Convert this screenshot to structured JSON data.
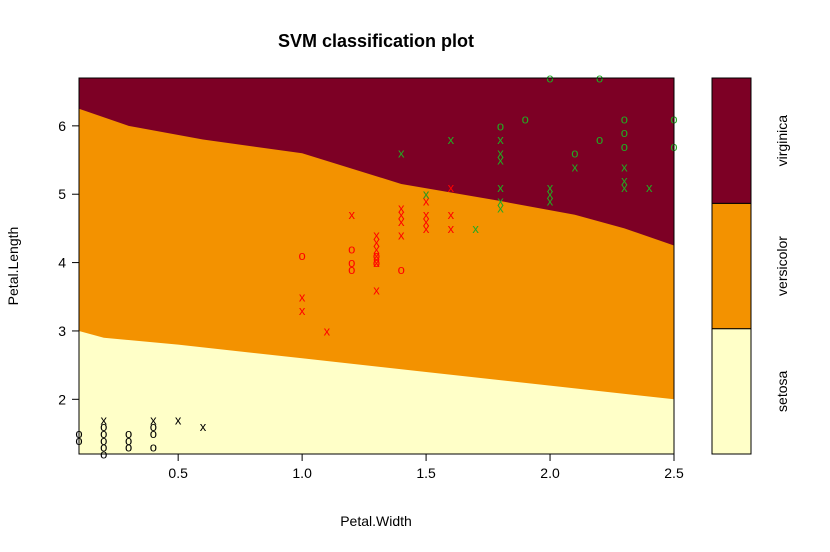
{
  "chart_data": {
    "type": "scatter",
    "title": "SVM classification plot",
    "xlabel": "Petal.Width",
    "ylabel": "Petal.Length",
    "xlim": [
      0.1,
      2.5
    ],
    "ylim": [
      1.2,
      6.7
    ],
    "x_ticks": [
      0.5,
      1.0,
      1.5,
      2.0,
      2.5
    ],
    "x_tick_labels": [
      "0.5",
      "1.0",
      "1.5",
      "2.0",
      "2.5"
    ],
    "y_ticks": [
      2,
      3,
      4,
      5,
      6
    ],
    "y_tick_labels": [
      "2",
      "3",
      "4",
      "5",
      "6"
    ],
    "grid": false,
    "legend_position": "right color key",
    "regions": [
      {
        "name": "setosa",
        "color": "#FFFFC8",
        "boundary_upper": [
          [
            0.1,
            3.0
          ],
          [
            0.2,
            2.9
          ],
          [
            0.5,
            2.8
          ],
          [
            1.0,
            2.6
          ],
          [
            1.5,
            2.4
          ],
          [
            2.0,
            2.2
          ],
          [
            2.5,
            2.0
          ]
        ]
      },
      {
        "name": "versicolor",
        "color": "#F39200",
        "boundary_upper": [
          [
            0.1,
            6.25
          ],
          [
            0.3,
            6.0
          ],
          [
            0.6,
            5.8
          ],
          [
            1.0,
            5.6
          ],
          [
            1.4,
            5.15
          ],
          [
            1.8,
            4.9
          ],
          [
            2.1,
            4.7
          ],
          [
            2.3,
            4.5
          ],
          [
            2.5,
            4.25
          ]
        ]
      },
      {
        "name": "virginica",
        "color": "#7D0025"
      }
    ],
    "class_colors": {
      "setosa": "#000000",
      "versicolor": "#FF0000",
      "virginica": "#22AA22"
    },
    "marker_meaning": {
      "x": "support vector",
      "o": "other observation"
    },
    "series": [
      {
        "class": "setosa",
        "marker": "o",
        "points": [
          [
            0.1,
            1.4
          ],
          [
            0.1,
            1.5
          ],
          [
            0.2,
            1.2
          ],
          [
            0.2,
            1.3
          ],
          [
            0.2,
            1.4
          ],
          [
            0.2,
            1.5
          ],
          [
            0.2,
            1.6
          ],
          [
            0.3,
            1.3
          ],
          [
            0.3,
            1.4
          ],
          [
            0.3,
            1.5
          ],
          [
            0.4,
            1.3
          ],
          [
            0.4,
            1.5
          ],
          [
            0.4,
            1.6
          ]
        ]
      },
      {
        "class": "setosa",
        "marker": "x",
        "points": [
          [
            0.2,
            1.7
          ],
          [
            0.4,
            1.7
          ],
          [
            0.5,
            1.7
          ],
          [
            0.6,
            1.6
          ]
        ]
      },
      {
        "class": "versicolor",
        "marker": "o",
        "points": [
          [
            1.0,
            4.1
          ],
          [
            1.2,
            4.2
          ],
          [
            1.2,
            4.0
          ],
          [
            1.2,
            3.9
          ],
          [
            1.3,
            4.1
          ],
          [
            1.3,
            4.0
          ],
          [
            1.4,
            3.9
          ]
        ]
      },
      {
        "class": "versicolor",
        "marker": "x",
        "points": [
          [
            1.0,
            3.5
          ],
          [
            1.0,
            3.3
          ],
          [
            1.1,
            3.0
          ],
          [
            1.2,
            4.7
          ],
          [
            1.3,
            4.4
          ],
          [
            1.3,
            4.3
          ],
          [
            1.3,
            4.2
          ],
          [
            1.3,
            4.1
          ],
          [
            1.3,
            4.0
          ],
          [
            1.3,
            3.6
          ],
          [
            1.4,
            4.8
          ],
          [
            1.4,
            4.7
          ],
          [
            1.4,
            4.6
          ],
          [
            1.4,
            4.4
          ],
          [
            1.5,
            5.0
          ],
          [
            1.5,
            4.9
          ],
          [
            1.5,
            4.7
          ],
          [
            1.5,
            4.6
          ],
          [
            1.5,
            4.5
          ],
          [
            1.6,
            5.1
          ],
          [
            1.6,
            4.7
          ],
          [
            1.6,
            4.5
          ]
        ]
      },
      {
        "class": "virginica",
        "marker": "o",
        "points": [
          [
            1.8,
            6.0
          ],
          [
            1.9,
            6.1
          ],
          [
            2.0,
            6.7
          ],
          [
            2.1,
            5.6
          ],
          [
            2.2,
            6.7
          ],
          [
            2.2,
            5.8
          ],
          [
            2.3,
            6.1
          ],
          [
            2.3,
            5.9
          ],
          [
            2.3,
            5.7
          ],
          [
            2.5,
            6.1
          ],
          [
            2.5,
            5.7
          ]
        ]
      },
      {
        "class": "virginica",
        "marker": "x",
        "points": [
          [
            1.4,
            5.6
          ],
          [
            1.5,
            5.0
          ],
          [
            1.6,
            5.8
          ],
          [
            1.7,
            4.5
          ],
          [
            1.8,
            5.8
          ],
          [
            1.8,
            5.6
          ],
          [
            1.8,
            5.5
          ],
          [
            1.8,
            5.1
          ],
          [
            1.8,
            4.9
          ],
          [
            1.8,
            4.8
          ],
          [
            2.0,
            5.1
          ],
          [
            2.0,
            5.0
          ],
          [
            2.0,
            4.9
          ],
          [
            2.1,
            5.4
          ],
          [
            2.3,
            5.4
          ],
          [
            2.3,
            5.2
          ],
          [
            2.3,
            5.1
          ],
          [
            2.4,
            5.1
          ]
        ]
      }
    ]
  }
}
